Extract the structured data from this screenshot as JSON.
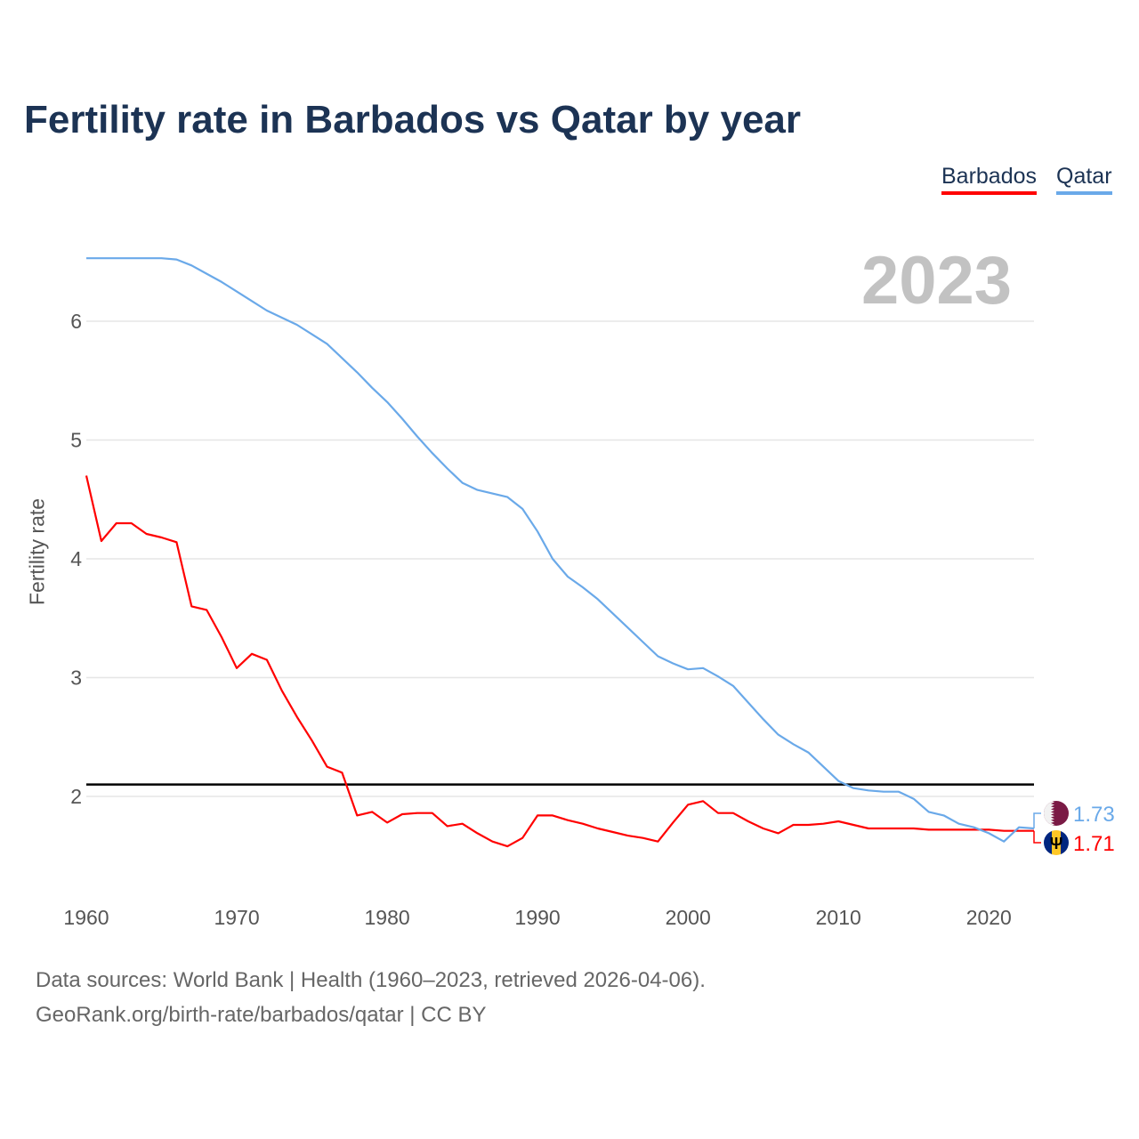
{
  "chart_data": {
    "type": "line",
    "title": "Fertility rate in Barbados vs Qatar by year",
    "xlabel": "",
    "ylabel": "Fertility rate",
    "xlim": [
      1960,
      2023
    ],
    "ylim": [
      1.3,
      6.8
    ],
    "x_ticks": [
      1960,
      1970,
      1980,
      1990,
      2000,
      2010,
      2020
    ],
    "y_ticks": [
      2,
      3,
      4,
      5,
      6
    ],
    "grid": true,
    "legend_position": "top-right",
    "current_year_label": "2023",
    "reference_line": 2.1,
    "series": [
      {
        "name": "Barbados",
        "color": "#ff0000",
        "end_label": "1.71",
        "flag": "barbados-flag",
        "values": [
          4.7,
          4.15,
          4.3,
          4.3,
          4.21,
          4.18,
          4.14,
          3.6,
          3.57,
          3.34,
          3.08,
          3.2,
          3.15,
          2.89,
          2.67,
          2.47,
          2.25,
          2.2,
          1.84,
          1.87,
          1.78,
          1.85,
          1.86,
          1.86,
          1.75,
          1.77,
          1.69,
          1.62,
          1.58,
          1.65,
          1.84,
          1.84,
          1.8,
          1.77,
          1.73,
          1.7,
          1.67,
          1.65,
          1.62,
          1.78,
          1.93,
          1.96,
          1.86,
          1.86,
          1.79,
          1.73,
          1.69,
          1.76,
          1.76,
          1.77,
          1.79,
          1.76,
          1.73,
          1.73,
          1.73,
          1.73,
          1.72,
          1.72,
          1.72,
          1.72,
          1.72,
          1.71,
          1.71,
          1.71
        ]
      },
      {
        "name": "Qatar",
        "color": "#6aa9e9",
        "end_label": "1.73",
        "flag": "qatar-flag",
        "values": [
          6.53,
          6.53,
          6.53,
          6.53,
          6.53,
          6.53,
          6.52,
          6.47,
          6.4,
          6.33,
          6.25,
          6.17,
          6.09,
          6.03,
          5.97,
          5.89,
          5.81,
          5.69,
          5.57,
          5.44,
          5.32,
          5.18,
          5.03,
          4.89,
          4.76,
          4.64,
          4.58,
          4.55,
          4.52,
          4.42,
          4.23,
          4.0,
          3.85,
          3.76,
          3.66,
          3.54,
          3.42,
          3.3,
          3.18,
          3.12,
          3.07,
          3.08,
          3.01,
          2.93,
          2.79,
          2.65,
          2.52,
          2.44,
          2.37,
          2.25,
          2.13,
          2.07,
          2.05,
          2.04,
          2.04,
          1.98,
          1.87,
          1.84,
          1.77,
          1.74,
          1.69,
          1.62,
          1.74,
          1.73
        ]
      }
    ]
  },
  "footer": {
    "line1": "Data sources: World Bank | Health (1960–2023, retrieved 2026-04-06).",
    "line2": "GeoRank.org/birth-rate/barbados/qatar | CC BY"
  }
}
